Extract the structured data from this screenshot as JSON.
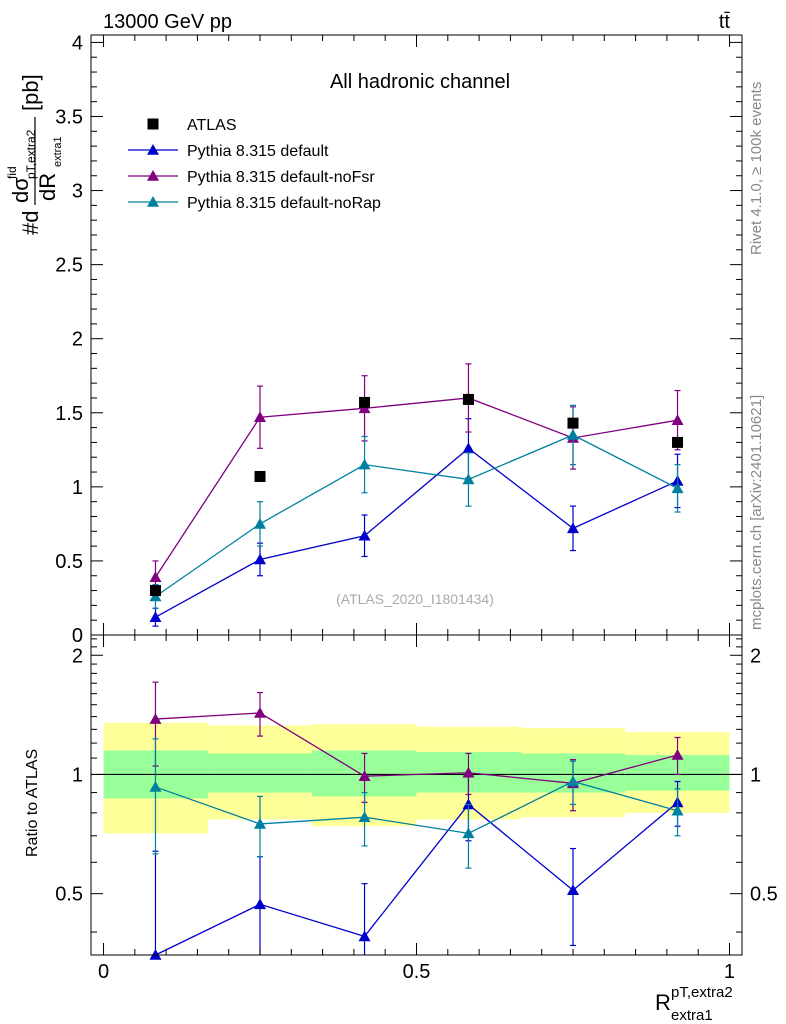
{
  "header": {
    "energy_label": "13000 GeV pp",
    "process_label": "tt̄",
    "side_rivet": "Rivet 4.1.0, ≥ 100k events",
    "side_mcplots": "mcplots.cern.ch [arXiv:2401.10621]"
  },
  "chart_data": {
    "type": "line",
    "title": "All hadronic channel",
    "watermark": "(ATLAS_2020_I1801434)",
    "xlabel_main": "R",
    "xlabel_sup": "pT,extra2",
    "xlabel_sub": "extra1",
    "ylabel_parts": {
      "hash_d": "#d",
      "sigma": "dσ",
      "sigma_sup": "fid",
      "sigma_sub": "pT,extra2",
      "dR": "dR",
      "dR_sub": "extra1",
      "unit": "[pb]"
    },
    "xlim": [
      -0.02,
      1.02
    ],
    "ylim_main": [
      0,
      4.05
    ],
    "ylim_ratio": [
      0.35,
      2.25
    ],
    "x_ticks": [
      0,
      0.5,
      1
    ],
    "x_tick_labels": [
      "0",
      "0.5",
      "1"
    ],
    "y_ticks_main": [
      0,
      0.5,
      1,
      1.5,
      2,
      2.5,
      3,
      3.5,
      4
    ],
    "y_tick_labels_main": [
      "0",
      "0.5",
      "1",
      "1.5",
      "2",
      "2.5",
      "3",
      "3.5",
      "4"
    ],
    "ratio_ylabel": "Ratio to ATLAS",
    "y_ticks_ratio": [
      0.5,
      1,
      2
    ],
    "y_tick_labels_ratio": [
      "0.5",
      "1",
      "2"
    ],
    "x": [
      0.083,
      0.25,
      0.417,
      0.583,
      0.75,
      0.917
    ],
    "bin_edges": [
      0,
      0.167,
      0.333,
      0.5,
      0.667,
      0.833,
      1.0
    ],
    "data": {
      "name": "ATLAS",
      "values": [
        0.3,
        1.07,
        1.57,
        1.59,
        1.43,
        1.3
      ],
      "band_green": [
        [
          0.87,
          1.15
        ],
        [
          0.9,
          1.13
        ],
        [
          0.88,
          1.15
        ],
        [
          0.9,
          1.14
        ],
        [
          0.9,
          1.13
        ],
        [
          0.91,
          1.12
        ]
      ],
      "band_yellow": [
        [
          0.71,
          1.35
        ],
        [
          0.77,
          1.33
        ],
        [
          0.74,
          1.34
        ],
        [
          0.77,
          1.32
        ],
        [
          0.78,
          1.31
        ],
        [
          0.8,
          1.28
        ]
      ]
    },
    "series": [
      {
        "name": "Pythia 8.315 default",
        "color": "#0000cc",
        "values": [
          0.12,
          0.51,
          0.67,
          1.26,
          0.72,
          1.04
        ],
        "errors": [
          0.06,
          0.11,
          0.14,
          0.2,
          0.15,
          0.18
        ],
        "ratio": [
          0.35,
          0.47,
          0.39,
          0.84,
          0.51,
          0.85
        ],
        "ratio_errors": [
          0.29,
          0.15,
          0.14,
          0.16,
          0.14,
          0.11
        ]
      },
      {
        "name": "Pythia 8.315 default-noFsr",
        "color": "#800080",
        "values": [
          0.39,
          1.47,
          1.53,
          1.6,
          1.33,
          1.45
        ],
        "errors": [
          0.11,
          0.21,
          0.22,
          0.23,
          0.21,
          0.2
        ],
        "ratio": [
          1.38,
          1.43,
          0.99,
          1.01,
          0.95,
          1.12
        ],
        "ratio_errors": [
          0.33,
          0.18,
          0.14,
          0.12,
          0.14,
          0.12
        ]
      },
      {
        "name": "Pythia 8.315 default-noRap",
        "color": "#0080a0",
        "values": [
          0.26,
          0.75,
          1.15,
          1.05,
          1.35,
          0.99
        ],
        "errors": [
          0.08,
          0.15,
          0.19,
          0.18,
          0.2,
          0.16
        ],
        "ratio": [
          0.93,
          0.75,
          0.78,
          0.71,
          0.96,
          0.81
        ],
        "ratio_errors": [
          0.3,
          0.13,
          0.12,
          0.13,
          0.12,
          0.11
        ]
      }
    ]
  }
}
